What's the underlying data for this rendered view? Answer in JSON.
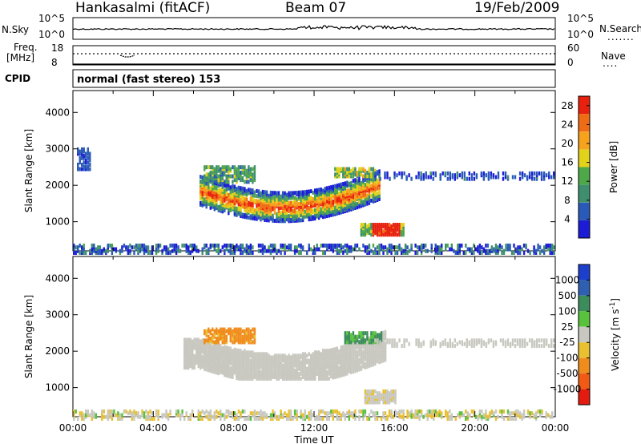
{
  "header": {
    "station": "Hankasalmi (fitACF)",
    "beam": "Beam 07",
    "date": "19/Feb/2009"
  },
  "strips": {
    "nsky_label": "N.Sky",
    "nsky_ticks": [
      "10^5",
      "10^0"
    ],
    "nsearch_label": "N.Search",
    "nsearch_ticks": [
      "10^5",
      "10^0"
    ],
    "freq_label_1": "Freq.",
    "freq_label_2": "[MHz]",
    "freq_ticks": [
      "18",
      "8"
    ],
    "nave_label": "Nave",
    "nave_ticks": [
      "60",
      "0"
    ],
    "cpid_label": "CPID",
    "cpid_value": "normal (fast stereo) 153"
  },
  "chart_data": [
    {
      "type": "heatmap",
      "panel": "power",
      "ylabel": "Slant Range [km]",
      "xlabel": "Time UT",
      "ylim": [
        200,
        4600
      ],
      "xlim": [
        0,
        24
      ],
      "ytick_labels": [
        "1000",
        "2000",
        "3000",
        "4000"
      ],
      "xtick_labels": [
        "00:00",
        "04:00",
        "08:00",
        "12:00",
        "16:00",
        "20:00",
        "00:00"
      ],
      "colorbar_title": "Power [dB]",
      "colorbar_ticks": [
        "4",
        "8",
        "12",
        "16",
        "20",
        "24",
        "28"
      ],
      "colorbar_range": [
        0,
        30
      ],
      "colors": [
        "#1c1cd6",
        "#2a5ab8",
        "#3f8f6e",
        "#4ea84a",
        "#e3d21a",
        "#f7a21d",
        "#f06c14",
        "#e8200e"
      ],
      "echo_regions": [
        {
          "region": "main-arc",
          "t_start": 6.3,
          "t_end": 15.2,
          "range_km": [
            1000,
            2600
          ],
          "peak_db": 28
        },
        {
          "region": "upper-band",
          "t_start": 6.5,
          "t_end": 9.0,
          "range_km": [
            2100,
            2600
          ],
          "peak_db": 16
        },
        {
          "region": "far-range",
          "t_start": 15.0,
          "t_end": 24.0,
          "range_km": [
            2200,
            2500
          ],
          "peak_db": 6
        },
        {
          "region": "bright-patch",
          "t_start": 14.3,
          "t_end": 16.5,
          "range_km": [
            700,
            1000
          ],
          "peak_db": 30
        },
        {
          "region": "early-echo",
          "t_start": 0.2,
          "t_end": 0.8,
          "range_km": [
            2500,
            3100
          ],
          "peak_db": 6
        },
        {
          "region": "near-range",
          "t_start": 0.0,
          "t_end": 24.0,
          "range_km": [
            200,
            450
          ],
          "peak_db": 10
        }
      ]
    },
    {
      "type": "heatmap",
      "panel": "velocity",
      "ylabel": "Slant Range [km]",
      "xlabel": "Time UT",
      "ylim": [
        200,
        4600
      ],
      "xlim": [
        0,
        24
      ],
      "ytick_labels": [
        "1000",
        "2000",
        "3000",
        "4000"
      ],
      "xtick_labels": [
        "00:00",
        "04:00",
        "08:00",
        "12:00",
        "16:00",
        "20:00",
        "00:00"
      ],
      "colorbar_title": "Velocity [m s",
      "colorbar_title_sup": "-1",
      "colorbar_title_end": "]",
      "colorbar_ticks": [
        "1000",
        "500",
        "100",
        "25",
        "-25",
        "-100",
        "-500",
        "-1000"
      ],
      "colors": [
        "#1c3fcc",
        "#2f5fb0",
        "#3c8c5c",
        "#58c23c",
        "#c8c8c0",
        "#e8c030",
        "#f08c1c",
        "#f05a14",
        "#e41c10"
      ],
      "echo_regions": [
        {
          "region": "main-arc",
          "t_start": 5.5,
          "t_end": 15.5,
          "range_km": [
            1300,
            2600
          ],
          "velocity_ms": 0
        },
        {
          "region": "upper-band-toward",
          "t_start": 6.5,
          "t_end": 9.0,
          "range_km": [
            2300,
            2700
          ],
          "velocity_ms": -150
        },
        {
          "region": "upper-band-away",
          "t_start": 13.5,
          "t_end": 15.3,
          "range_km": [
            2300,
            2600
          ],
          "velocity_ms": 150
        },
        {
          "region": "far-range",
          "t_start": 15.0,
          "t_end": 24.0,
          "range_km": [
            2200,
            2400
          ],
          "velocity_ms": 0
        },
        {
          "region": "lower-patch",
          "t_start": 14.5,
          "t_end": 16.0,
          "range_km": [
            650,
            1000
          ],
          "velocity_ms": -30
        },
        {
          "region": "near-range",
          "t_start": 0.0,
          "t_end": 24.0,
          "range_km": [
            200,
            450
          ],
          "velocity_ms": -20
        }
      ]
    }
  ]
}
